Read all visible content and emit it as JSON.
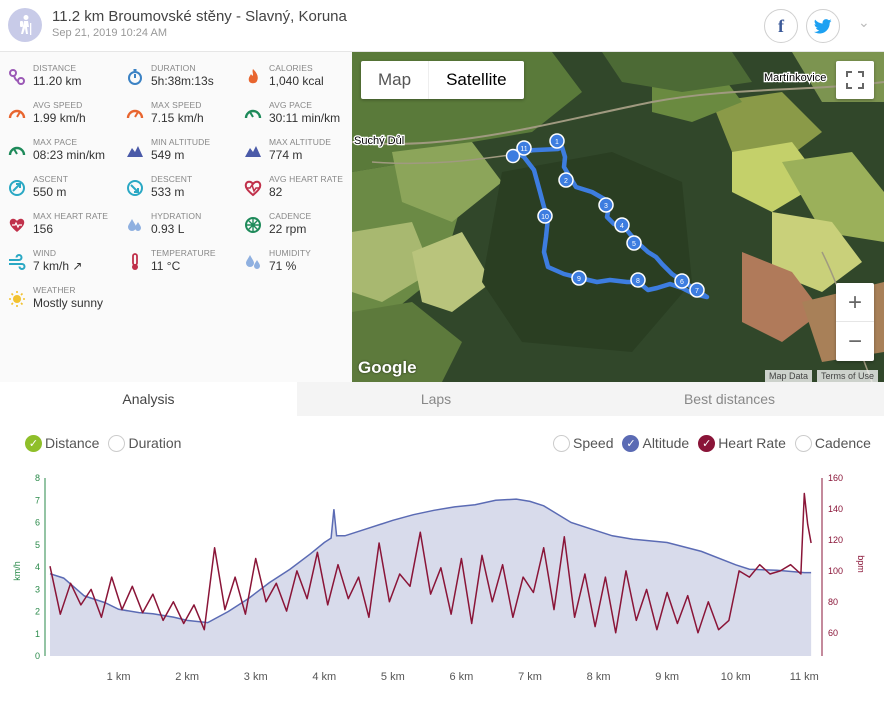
{
  "header": {
    "title": "11.2 km Broumovské stěny - Slavný, Koruna",
    "subtitle": "Sep 21, 2019 10:24 AM",
    "facebook_icon": "f",
    "twitter_icon": "twitter-bird",
    "expand_icon": "⌄"
  },
  "stats": [
    {
      "label": "DISTANCE",
      "value": "11.20 km",
      "icon": "route-icon",
      "color": "#9b59b6"
    },
    {
      "label": "DURATION",
      "value": "5h:38m:13s",
      "icon": "stopwatch-icon",
      "color": "#3b82c4"
    },
    {
      "label": "CALORIES",
      "value": "1,040 kcal",
      "icon": "flame-icon",
      "color": "#e8652f"
    },
    {
      "label": "AVG SPEED",
      "value": "1.99 km/h",
      "icon": "speedometer-icon",
      "color": "#e8652f"
    },
    {
      "label": "MAX SPEED",
      "value": "7.15 km/h",
      "icon": "speedometer-icon",
      "color": "#e8652f"
    },
    {
      "label": "AVG PACE",
      "value": "30:11 min/km",
      "icon": "pace-gauge-icon",
      "color": "#1e8a5a"
    },
    {
      "label": "MAX PACE",
      "value": "08:23 min/km",
      "icon": "pace-gauge-icon",
      "color": "#1e8a5a"
    },
    {
      "label": "MIN ALTITUDE",
      "value": "549 m",
      "icon": "mountain-icon",
      "color": "#4a5aa8"
    },
    {
      "label": "MAX ALTITUDE",
      "value": "774 m",
      "icon": "mountain-icon",
      "color": "#4a5aa8"
    },
    {
      "label": "ASCENT",
      "value": "550 m",
      "icon": "ascent-icon",
      "color": "#2aa8c4"
    },
    {
      "label": "DESCENT",
      "value": "533 m",
      "icon": "descent-icon",
      "color": "#2aa8c4"
    },
    {
      "label": "AVG HEART RATE",
      "value": "82",
      "icon": "heart-rate-icon",
      "color": "#c0304a"
    },
    {
      "label": "MAX HEART RATE",
      "value": "156",
      "icon": "heart-icon",
      "color": "#c0304a"
    },
    {
      "label": "HYDRATION",
      "value": "0.93 L",
      "icon": "water-drops-icon",
      "color": "#8fb0e0"
    },
    {
      "label": "CADENCE",
      "value": "22 rpm",
      "icon": "cadence-wheel-icon",
      "color": "#1e8a5a"
    },
    {
      "label": "WIND",
      "value": "7 km/h ↗",
      "icon": "wind-icon",
      "color": "#2aa8c4"
    },
    {
      "label": "TEMPERATURE",
      "value": "11 °C",
      "icon": "thermometer-icon",
      "color": "#c0304a"
    },
    {
      "label": "HUMIDITY",
      "value": "71 %",
      "icon": "humidity-icon",
      "color": "#8fb0e0"
    },
    {
      "label": "WEATHER",
      "value": "Mostly sunny",
      "icon": "sun-icon",
      "color": "#f2c230"
    }
  ],
  "map": {
    "map_label": "Map",
    "satellite_label": "Satellite",
    "place_1": "Martínkovice",
    "place_2": "Suchý Důl",
    "google_label": "Google",
    "map_data": "Map Data",
    "terms": "Terms of Use",
    "zoom_in": "+",
    "zoom_out": "−",
    "lap_markers": [
      "1",
      "2",
      "3",
      "4",
      "5",
      "6",
      "7",
      "8",
      "9",
      "10",
      "11"
    ]
  },
  "tabs": [
    {
      "label": "Analysis"
    },
    {
      "label": "Laps"
    },
    {
      "label": "Best distances"
    }
  ],
  "toggles_left": [
    {
      "label": "Distance",
      "checked": true,
      "color": "#8fbf2a"
    },
    {
      "label": "Duration",
      "checked": false
    }
  ],
  "toggles_right": [
    {
      "label": "Speed",
      "checked": false
    },
    {
      "label": "Altitude",
      "checked": true,
      "color": "#5b6bb4"
    },
    {
      "label": "Heart Rate",
      "checked": true,
      "color": "#8a1538"
    },
    {
      "label": "Cadence",
      "checked": false
    }
  ],
  "chart_data": {
    "type": "line",
    "x_ticks": [
      "1 km",
      "2 km",
      "3 km",
      "4 km",
      "5 km",
      "6 km",
      "7 km",
      "8 km",
      "9 km",
      "10 km",
      "11 km"
    ],
    "y_left_label": "km/h",
    "y_left_ticks": [
      "0",
      "1",
      "2",
      "3",
      "4",
      "5",
      "6",
      "7",
      "8"
    ],
    "y_left_range": [
      0,
      8
    ],
    "y_right_label": "bpm",
    "y_right_ticks": [
      "60",
      "80",
      "100",
      "120",
      "140",
      "160"
    ],
    "y_right_range": [
      45,
      160
    ],
    "x_range_km": [
      0,
      11.2
    ],
    "altitude_series": {
      "name": "Altitude",
      "color": "#5b6bb4",
      "x_km": [
        0,
        0.2,
        0.5,
        0.8,
        1.0,
        1.3,
        1.5,
        1.8,
        2.0,
        2.3,
        2.6,
        2.9,
        3.2,
        3.5,
        3.8,
        4.0,
        4.1,
        4.14,
        4.18,
        4.3,
        4.6,
        5.0,
        5.3,
        5.6,
        5.9,
        6.2,
        6.5,
        6.8,
        7.0,
        7.2,
        7.6,
        7.9,
        8.2,
        8.5,
        9.0,
        9.5,
        10.0,
        10.2,
        10.6,
        11.0,
        11.1
      ],
      "y": [
        3.7,
        3.5,
        2.7,
        2.4,
        2.1,
        1.95,
        1.9,
        1.75,
        1.6,
        1.5,
        2.0,
        2.6,
        3.3,
        3.9,
        4.6,
        5.1,
        5.3,
        6.6,
        5.4,
        5.4,
        5.7,
        6.1,
        6.35,
        6.55,
        6.7,
        6.8,
        7.0,
        7.05,
        6.95,
        6.75,
        6.0,
        5.7,
        5.4,
        5.25,
        5.1,
        4.7,
        4.1,
        3.9,
        3.85,
        3.75,
        3.75
      ]
    },
    "heart_rate_series": {
      "name": "Heart Rate",
      "color": "#8a1538",
      "x_km": [
        0,
        0.15,
        0.3,
        0.45,
        0.6,
        0.75,
        0.9,
        1.05,
        1.2,
        1.35,
        1.5,
        1.65,
        1.8,
        1.95,
        2.1,
        2.25,
        2.4,
        2.55,
        2.7,
        2.85,
        3.0,
        3.15,
        3.3,
        3.45,
        3.6,
        3.75,
        3.9,
        4.05,
        4.2,
        4.35,
        4.5,
        4.65,
        4.8,
        4.95,
        5.1,
        5.25,
        5.4,
        5.55,
        5.7,
        5.85,
        6.0,
        6.15,
        6.3,
        6.45,
        6.6,
        6.75,
        6.9,
        7.05,
        7.2,
        7.35,
        7.5,
        7.65,
        7.8,
        7.95,
        8.1,
        8.25,
        8.4,
        8.55,
        8.7,
        8.85,
        9.0,
        9.15,
        9.3,
        9.45,
        9.6,
        9.75,
        9.9,
        10.05,
        10.2,
        10.35,
        10.5,
        10.65,
        10.8,
        10.95,
        11.0,
        11.05,
        11.1
      ],
      "y": [
        103,
        72,
        92,
        78,
        88,
        70,
        96,
        75,
        90,
        73,
        85,
        68,
        80,
        66,
        78,
        62,
        115,
        75,
        96,
        72,
        108,
        80,
        92,
        74,
        100,
        82,
        112,
        78,
        104,
        82,
        96,
        70,
        118,
        80,
        98,
        90,
        125,
        85,
        102,
        72,
        108,
        66,
        110,
        80,
        104,
        70,
        96,
        86,
        115,
        75,
        122,
        70,
        98,
        64,
        96,
        60,
        100,
        68,
        88,
        62,
        86,
        66,
        84,
        60,
        80,
        62,
        68,
        100,
        96,
        104,
        98,
        100,
        104,
        98,
        150,
        130,
        118
      ]
    }
  }
}
